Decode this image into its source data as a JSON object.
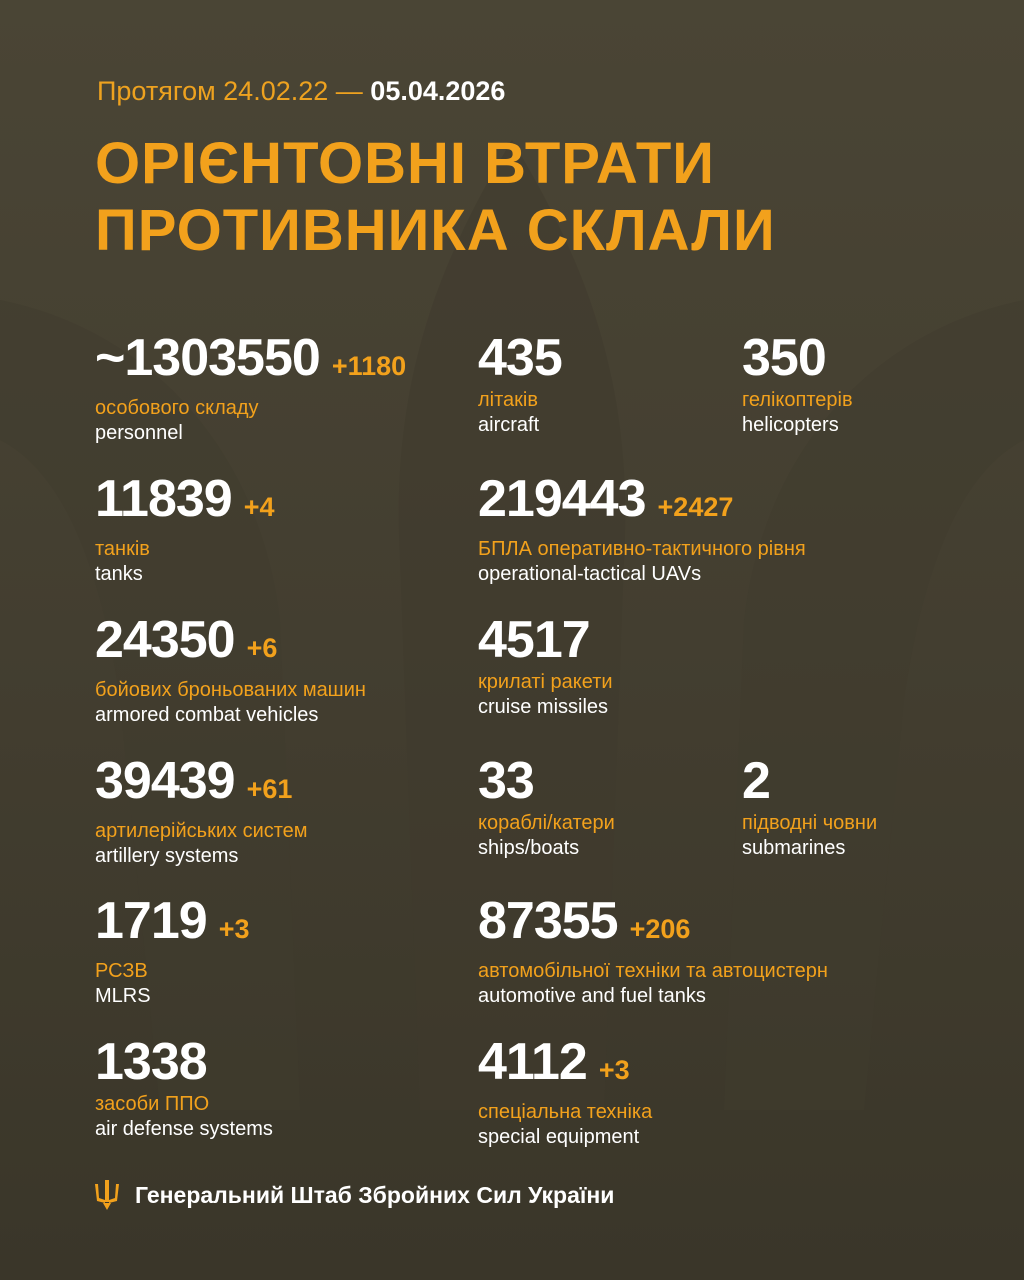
{
  "header": {
    "period_prefix": "Протягом 24.02.22 —",
    "period_end": "05.04.2026",
    "title_line1": "ОРІЄНТОВНІ ВТРАТИ",
    "title_line2": "ПРОТИВНИКА СКЛАЛИ"
  },
  "colors": {
    "accent": "#f2a11c",
    "background": "#4a4535",
    "text": "#ffffff"
  },
  "items": [
    {
      "value": "~1303550",
      "delta": "+1180",
      "ua": "особового складу",
      "en": "personnel"
    },
    {
      "value": "435",
      "delta": "",
      "ua": "літаків",
      "en": "aircraft"
    },
    {
      "value": "350",
      "delta": "",
      "ua": "гелікоптерів",
      "en": "helicopters"
    },
    {
      "value": "11839",
      "delta": "+4",
      "ua": "танків",
      "en": "tanks"
    },
    {
      "value": "219443",
      "delta": "+2427",
      "ua": "БПЛА оперативно-тактичного рівня",
      "en": "operational-tactical UAVs"
    },
    {
      "value": "24350",
      "delta": "+6",
      "ua": "бойових броньованих машин",
      "en": "armored combat vehicles"
    },
    {
      "value": "4517",
      "delta": "",
      "ua": "крилаті ракети",
      "en": "cruise missiles"
    },
    {
      "value": "39439",
      "delta": "+61",
      "ua": "артилерійських систем",
      "en": "artillery systems"
    },
    {
      "value": "33",
      "delta": "",
      "ua": "кораблі/катери",
      "en": "ships/boats"
    },
    {
      "value": "2",
      "delta": "",
      "ua": "підводні човни",
      "en": "submarines"
    },
    {
      "value": "1719",
      "delta": "+3",
      "ua": "РСЗВ",
      "en": "MLRS"
    },
    {
      "value": "87355",
      "delta": "+206",
      "ua": "автомобільної техніки та автоцистерн",
      "en": "automotive and fuel tanks"
    },
    {
      "value": "1338",
      "delta": "",
      "ua": "засоби ППО",
      "en": "air defense systems"
    },
    {
      "value": "4112",
      "delta": "+3",
      "ua": "спеціальна техніка",
      "en": "special equipment"
    }
  ],
  "footer": {
    "org": "Генеральний Штаб Збройних Сил України",
    "icon": "trident-icon"
  }
}
